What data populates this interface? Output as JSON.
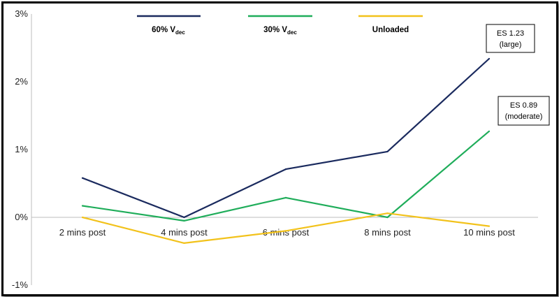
{
  "chart_data": {
    "type": "line",
    "categories": [
      "2 mins post",
      "4 mins post",
      "6 mins post",
      "8 mins post",
      "10 mins post"
    ],
    "ylim": [
      -1,
      3
    ],
    "yticks": [
      -1,
      0,
      1,
      2,
      3
    ],
    "ytick_labels": [
      "-1%",
      "0%",
      "1%",
      "2%",
      "3%"
    ],
    "grid": false,
    "legend_position": "top",
    "series": [
      {
        "name": "60% V",
        "name_sub": "dec",
        "color": "#1a2a5e",
        "values": [
          0.58,
          0.0,
          0.71,
          0.97,
          2.34
        ]
      },
      {
        "name": "30% V",
        "name_sub": "dec",
        "color": "#1fad5a",
        "values": [
          0.17,
          -0.05,
          0.29,
          0.0,
          1.27
        ]
      },
      {
        "name": "Unloaded",
        "name_sub": "",
        "color": "#f2c21b",
        "values": [
          0.0,
          -0.38,
          -0.2,
          0.06,
          -0.13
        ]
      }
    ],
    "annotations": [
      {
        "line1": "ES 1.23",
        "line2": "(large)"
      },
      {
        "line1": "ES 0.89",
        "line2": "(moderate)"
      }
    ]
  }
}
